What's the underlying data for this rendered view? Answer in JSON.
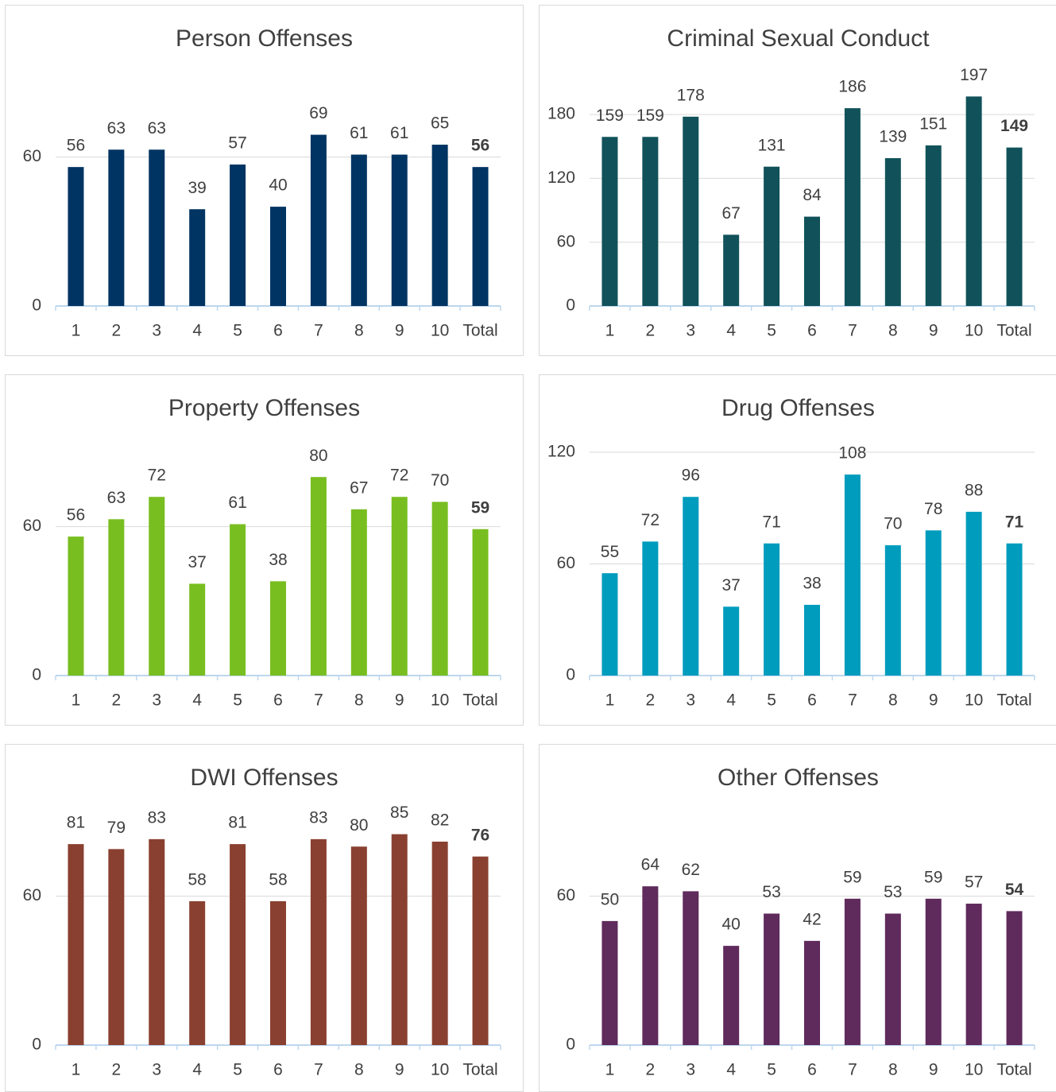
{
  "chart_data": [
    {
      "type": "bar",
      "title": "Person Offenses",
      "categories": [
        "1",
        "2",
        "3",
        "4",
        "5",
        "6",
        "7",
        "8",
        "9",
        "10",
        "Total"
      ],
      "values": [
        56,
        63,
        63,
        39,
        57,
        40,
        69,
        61,
        61,
        65,
        56
      ],
      "color": "#003462",
      "ylim": [
        0,
        90
      ],
      "yticks": [
        0,
        60
      ],
      "grid": true
    },
    {
      "type": "bar",
      "title": "Criminal Sexual Conduct",
      "categories": [
        "1",
        "2",
        "3",
        "4",
        "5",
        "6",
        "7",
        "8",
        "9",
        "10",
        "Total"
      ],
      "values": [
        159,
        159,
        178,
        67,
        131,
        84,
        186,
        139,
        151,
        197,
        149
      ],
      "color": "#11525a",
      "ylim": [
        0,
        210
      ],
      "yticks": [
        0,
        60,
        120,
        180
      ],
      "grid": true
    },
    {
      "type": "bar",
      "title": "Property Offenses",
      "categories": [
        "1",
        "2",
        "3",
        "4",
        "5",
        "6",
        "7",
        "8",
        "9",
        "10",
        "Total"
      ],
      "values": [
        56,
        63,
        72,
        37,
        61,
        38,
        80,
        67,
        72,
        70,
        59
      ],
      "color": "#78be20",
      "ylim": [
        0,
        90
      ],
      "yticks": [
        0,
        60
      ],
      "grid": true
    },
    {
      "type": "bar",
      "title": "Drug Offenses",
      "categories": [
        "1",
        "2",
        "3",
        "4",
        "5",
        "6",
        "7",
        "8",
        "9",
        "10",
        "Total"
      ],
      "values": [
        55,
        72,
        96,
        37,
        71,
        38,
        108,
        70,
        78,
        88,
        71
      ],
      "color": "#009cbd",
      "ylim": [
        0,
        120
      ],
      "yticks": [
        0,
        60,
        120
      ],
      "grid": true
    },
    {
      "type": "bar",
      "title": "DWI Offenses",
      "categories": [
        "1",
        "2",
        "3",
        "4",
        "5",
        "6",
        "7",
        "8",
        "9",
        "10",
        "Total"
      ],
      "values": [
        81,
        79,
        83,
        58,
        81,
        58,
        83,
        80,
        85,
        82,
        76
      ],
      "color": "#8a4030",
      "ylim": [
        0,
        90
      ],
      "yticks": [
        0,
        60
      ],
      "grid": true
    },
    {
      "type": "bar",
      "title": "Other Offenses",
      "categories": [
        "1",
        "2",
        "3",
        "4",
        "5",
        "6",
        "7",
        "8",
        "9",
        "10",
        "Total"
      ],
      "values": [
        50,
        64,
        62,
        40,
        53,
        42,
        59,
        53,
        59,
        57,
        54
      ],
      "color": "#5f2a5c",
      "ylim": [
        0,
        90
      ],
      "yticks": [
        0,
        60
      ],
      "grid": true
    }
  ]
}
